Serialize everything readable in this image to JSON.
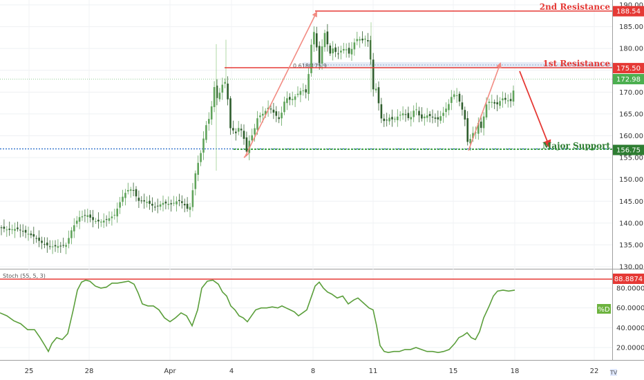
{
  "chart_data": [
    {
      "type": "candlestick",
      "x_axis_ticks": [
        "25",
        "28",
        "Apr",
        "4",
        "8",
        "11",
        "15",
        "18",
        "22"
      ],
      "y_axis_ticks": [
        "130.00",
        "135.00",
        "140.00",
        "145.00",
        "150.00",
        "155.00",
        "160.00",
        "165.00",
        "170.00",
        "175.00",
        "180.00",
        "185.00",
        "190.00"
      ],
      "ylim": [
        129,
        191
      ],
      "current_price": 172.98,
      "fib_label": "0.618(175.9",
      "price_path": [
        [
          0,
          139.0
        ],
        [
          12,
          138.4
        ],
        [
          24,
          138.7
        ],
        [
          36,
          137.9
        ],
        [
          48,
          137.0
        ],
        [
          60,
          135.5
        ],
        [
          72,
          134.6
        ],
        [
          84,
          134.7
        ],
        [
          96,
          135.0
        ],
        [
          104,
          138.6
        ],
        [
          114,
          141.3
        ],
        [
          126,
          141.9
        ],
        [
          136,
          140.5
        ],
        [
          146,
          140.3
        ],
        [
          156,
          140.9
        ],
        [
          166,
          141.9
        ],
        [
          176,
          145.7
        ],
        [
          184,
          147.5
        ],
        [
          192,
          147.8
        ],
        [
          200,
          145.1
        ],
        [
          212,
          144.9
        ],
        [
          224,
          143.6
        ],
        [
          236,
          144.6
        ],
        [
          248,
          144.3
        ],
        [
          258,
          145.2
        ],
        [
          266,
          144.3
        ],
        [
          274,
          142.7
        ],
        [
          280,
          148.6
        ],
        [
          284,
          152.6
        ],
        [
          289,
          154.8
        ],
        [
          293,
          157.9
        ],
        [
          297,
          161.8
        ],
        [
          301,
          163.6
        ],
        [
          305,
          164.4
        ],
        [
          309,
          172.2
        ],
        [
          313,
          168.4
        ],
        [
          317,
          169.4
        ],
        [
          321,
          171.4
        ],
        [
          325,
          172.9
        ],
        [
          329,
          169.5
        ],
        [
          333,
          161.8
        ],
        [
          337,
          161.3
        ],
        [
          341,
          160.5
        ],
        [
          345,
          161.8
        ],
        [
          349,
          161.3
        ],
        [
          353,
          159.3
        ],
        [
          357,
          156.3
        ],
        [
          361,
          159.0
        ],
        [
          367,
          160.8
        ],
        [
          373,
          164.3
        ],
        [
          381,
          165.1
        ],
        [
          389,
          166.6
        ],
        [
          397,
          165.1
        ],
        [
          405,
          163.6
        ],
        [
          413,
          168.8
        ],
        [
          421,
          168.1
        ],
        [
          429,
          169.3
        ],
        [
          437,
          170.6
        ],
        [
          443,
          169.9
        ],
        [
          448,
          175.8
        ],
        [
          452,
          183.9
        ],
        [
          456,
          183.7
        ],
        [
          460,
          177.7
        ],
        [
          464,
          175.8
        ],
        [
          468,
          184.7
        ],
        [
          472,
          182.4
        ],
        [
          477,
          178.6
        ],
        [
          482,
          180.1
        ],
        [
          488,
          178.6
        ],
        [
          494,
          179.6
        ],
        [
          500,
          180.1
        ],
        [
          506,
          178.6
        ],
        [
          512,
          181.2
        ],
        [
          518,
          182.4
        ],
        [
          524,
          181.8
        ],
        [
          530,
          182.4
        ],
        [
          535,
          180.8
        ],
        [
          539,
          170.6
        ],
        [
          545,
          170.8
        ],
        [
          551,
          164.1
        ],
        [
          557,
          163.2
        ],
        [
          563,
          164.2
        ],
        [
          569,
          163.6
        ],
        [
          577,
          164.6
        ],
        [
          585,
          165.3
        ],
        [
          593,
          163.6
        ],
        [
          601,
          166.6
        ],
        [
          609,
          163.8
        ],
        [
          617,
          164.7
        ],
        [
          625,
          164.4
        ],
        [
          633,
          163.6
        ],
        [
          641,
          165.1
        ],
        [
          649,
          167.1
        ],
        [
          655,
          169.6
        ],
        [
          661,
          169.3
        ],
        [
          667,
          167.1
        ],
        [
          673,
          163.6
        ],
        [
          677,
          158.2
        ],
        [
          681,
          159.4
        ],
        [
          685,
          160.8
        ],
        [
          689,
          160.8
        ],
        [
          693,
          163.4
        ],
        [
          697,
          161.4
        ],
        [
          701,
          165.3
        ],
        [
          705,
          167.8
        ],
        [
          711,
          167.8
        ],
        [
          719,
          167.1
        ],
        [
          727,
          168.6
        ],
        [
          733,
          168.1
        ],
        [
          737,
          168.1
        ],
        [
          741,
          167.8
        ],
        [
          745,
          172.9
        ]
      ],
      "levels": [
        {
          "label": "2nd Resistance",
          "value": 188.54,
          "color": "#e53935"
        },
        {
          "label": "1st Resistance",
          "value": 175.5,
          "color": "#e53935"
        },
        {
          "label": "Major Support",
          "value": 156.75,
          "color": "#43a047"
        }
      ],
      "price_tags": [
        {
          "value": 188.54,
          "text": "188.54",
          "color": "#e53935"
        },
        {
          "value": 175.5,
          "text": "175.50",
          "color": "#e53935"
        },
        {
          "value": 172.98,
          "text": "172.98",
          "color": "#4caf50"
        },
        {
          "value": 156.75,
          "text": "156.75",
          "color": "#2e7d32"
        }
      ],
      "colors": {
        "up": "#26a69a",
        "down": "#ef5350",
        "candle_up": "#5fa35a",
        "candle_down": "#2e5d2c"
      }
    },
    {
      "type": "line",
      "title": "Stoch (55, 5, 3)",
      "series_label": "%D",
      "y_axis_ticks": [
        "20.0000",
        "40.0000",
        "60.0000",
        "80.0000"
      ],
      "ylim": [
        5,
        100
      ],
      "overbought": {
        "value": 88.8874,
        "text": "88.8874",
        "color": "#e53935"
      },
      "line_color": "#5a9e3a",
      "points": [
        [
          0,
          55
        ],
        [
          10,
          52
        ],
        [
          20,
          47
        ],
        [
          30,
          44
        ],
        [
          40,
          38
        ],
        [
          50,
          38
        ],
        [
          58,
          30
        ],
        [
          65,
          22
        ],
        [
          70,
          16
        ],
        [
          75,
          24
        ],
        [
          82,
          30
        ],
        [
          90,
          28
        ],
        [
          98,
          34
        ],
        [
          106,
          58
        ],
        [
          112,
          78
        ],
        [
          118,
          86
        ],
        [
          124,
          88
        ],
        [
          130,
          87
        ],
        [
          138,
          82
        ],
        [
          146,
          80
        ],
        [
          154,
          81
        ],
        [
          162,
          85
        ],
        [
          170,
          85
        ],
        [
          178,
          86
        ],
        [
          186,
          87
        ],
        [
          194,
          84
        ],
        [
          200,
          75
        ],
        [
          206,
          64
        ],
        [
          214,
          62
        ],
        [
          222,
          62
        ],
        [
          230,
          58
        ],
        [
          238,
          50
        ],
        [
          246,
          46
        ],
        [
          254,
          50
        ],
        [
          262,
          55
        ],
        [
          270,
          52
        ],
        [
          278,
          42
        ],
        [
          286,
          58
        ],
        [
          292,
          80
        ],
        [
          300,
          87
        ],
        [
          308,
          88
        ],
        [
          316,
          84
        ],
        [
          322,
          76
        ],
        [
          328,
          72
        ],
        [
          334,
          62
        ],
        [
          340,
          58
        ],
        [
          346,
          52
        ],
        [
          352,
          50
        ],
        [
          358,
          46
        ],
        [
          364,
          52
        ],
        [
          370,
          58
        ],
        [
          378,
          60
        ],
        [
          386,
          60
        ],
        [
          394,
          61
        ],
        [
          402,
          60
        ],
        [
          408,
          62
        ],
        [
          414,
          60
        ],
        [
          420,
          58
        ],
        [
          426,
          56
        ],
        [
          432,
          52
        ],
        [
          438,
          55
        ],
        [
          444,
          58
        ],
        [
          450,
          70
        ],
        [
          456,
          82
        ],
        [
          462,
          86
        ],
        [
          468,
          80
        ],
        [
          474,
          76
        ],
        [
          480,
          74
        ],
        [
          488,
          70
        ],
        [
          496,
          72
        ],
        [
          504,
          64
        ],
        [
          512,
          68
        ],
        [
          518,
          70
        ],
        [
          526,
          65
        ],
        [
          534,
          60
        ],
        [
          540,
          58
        ],
        [
          545,
          42
        ],
        [
          550,
          22
        ],
        [
          556,
          16
        ],
        [
          562,
          15
        ],
        [
          570,
          16
        ],
        [
          578,
          16
        ],
        [
          586,
          18
        ],
        [
          594,
          18
        ],
        [
          602,
          20
        ],
        [
          610,
          18
        ],
        [
          618,
          16
        ],
        [
          626,
          16
        ],
        [
          634,
          15
        ],
        [
          642,
          16
        ],
        [
          650,
          18
        ],
        [
          658,
          24
        ],
        [
          664,
          30
        ],
        [
          670,
          32
        ],
        [
          676,
          35
        ],
        [
          682,
          30
        ],
        [
          688,
          28
        ],
        [
          694,
          36
        ],
        [
          700,
          50
        ],
        [
          708,
          62
        ],
        [
          714,
          72
        ],
        [
          720,
          77
        ],
        [
          728,
          78
        ],
        [
          736,
          77
        ],
        [
          745,
          78
        ]
      ]
    }
  ],
  "annotations": {
    "second_resistance": "2nd Resistance",
    "first_resistance": "1st Resistance",
    "major_support": "Major Support"
  },
  "brand_logo": "TV"
}
